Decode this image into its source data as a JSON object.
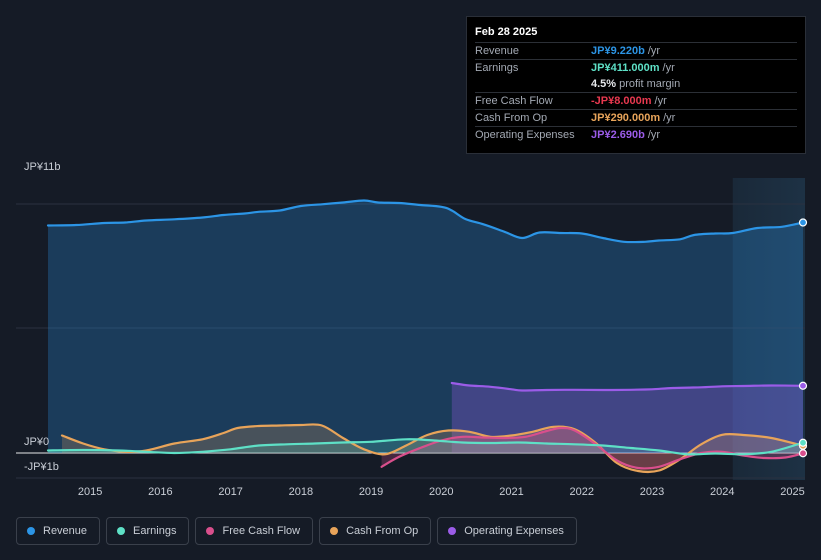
{
  "chart_data": {
    "type": "area",
    "y_axis_labels": {
      "top": "JP¥11b",
      "zero": "JP¥0",
      "bottom": "-JP¥1b"
    },
    "ylim": [
      -1,
      11
    ],
    "xlim": [
      2014.4,
      2025.15
    ],
    "x_ticks": [
      {
        "value": 2015,
        "label": "2015"
      },
      {
        "value": 2016,
        "label": "2016"
      },
      {
        "value": 2017,
        "label": "2017"
      },
      {
        "value": 2018,
        "label": "2018"
      },
      {
        "value": 2019,
        "label": "2019"
      },
      {
        "value": 2020,
        "label": "2020"
      },
      {
        "value": 2021,
        "label": "2021"
      },
      {
        "value": 2022,
        "label": "2022"
      },
      {
        "value": 2023,
        "label": "2023"
      },
      {
        "value": 2024,
        "label": "2024"
      },
      {
        "value": 2025,
        "label": "2025"
      }
    ],
    "highlight_from": 2024.15,
    "series": [
      {
        "name": "Revenue",
        "color": "#2c95e6",
        "fill": true,
        "x": [
          2014.4,
          2014.8,
          2015.2,
          2015.5,
          2015.8,
          2016.2,
          2016.6,
          2016.9,
          2017.2,
          2017.4,
          2017.7,
          2018.0,
          2018.3,
          2018.6,
          2018.9,
          2019.1,
          2019.4,
          2019.7,
          2020.0,
          2020.15,
          2020.35,
          2020.6,
          2020.9,
          2021.15,
          2021.4,
          2021.7,
          2022.0,
          2022.3,
          2022.6,
          2022.9,
          2023.1,
          2023.4,
          2023.6,
          2023.9,
          2024.15,
          2024.5,
          2024.85,
          2025.15
        ],
        "values": [
          9.1,
          9.12,
          9.2,
          9.22,
          9.3,
          9.35,
          9.42,
          9.52,
          9.58,
          9.65,
          9.7,
          9.88,
          9.95,
          10.02,
          10.1,
          10.02,
          10.0,
          9.92,
          9.85,
          9.7,
          9.35,
          9.15,
          8.85,
          8.6,
          8.82,
          8.8,
          8.78,
          8.6,
          8.45,
          8.45,
          8.5,
          8.55,
          8.72,
          8.78,
          8.8,
          9.0,
          9.05,
          9.22
        ]
      },
      {
        "name": "Operating Expenses",
        "color": "#9b5ce8",
        "fill": true,
        "x": [
          2020.15,
          2020.4,
          2020.7,
          2021.0,
          2021.15,
          2021.5,
          2021.9,
          2022.3,
          2022.7,
          2023.0,
          2023.3,
          2023.7,
          2024.0,
          2024.3,
          2024.7,
          2025.15
        ],
        "values": [
          2.8,
          2.7,
          2.65,
          2.55,
          2.5,
          2.52,
          2.53,
          2.52,
          2.53,
          2.55,
          2.6,
          2.63,
          2.67,
          2.68,
          2.7,
          2.69
        ]
      },
      {
        "name": "Cash From Op",
        "color": "#e8a45a",
        "fill": true,
        "x": [
          2014.6,
          2014.9,
          2015.2,
          2015.5,
          2015.8,
          2016.2,
          2016.6,
          2016.9,
          2017.1,
          2017.4,
          2017.7,
          2018.0,
          2018.3,
          2018.6,
          2018.9,
          2019.2,
          2019.5,
          2019.8,
          2020.1,
          2020.4,
          2020.7,
          2021.0,
          2021.3,
          2021.6,
          2021.9,
          2022.2,
          2022.5,
          2022.8,
          2023.1,
          2023.4,
          2023.7,
          2024.0,
          2024.3,
          2024.7,
          2025.15
        ],
        "values": [
          0.7,
          0.38,
          0.15,
          0.05,
          0.1,
          0.38,
          0.55,
          0.8,
          1.0,
          1.08,
          1.1,
          1.12,
          1.1,
          0.6,
          0.15,
          -0.05,
          0.3,
          0.72,
          0.9,
          0.85,
          0.65,
          0.7,
          0.85,
          1.05,
          0.95,
          0.4,
          -0.4,
          -0.72,
          -0.7,
          -0.25,
          0.35,
          0.73,
          0.72,
          0.6,
          0.29
        ]
      },
      {
        "name": "Free Cash Flow",
        "color": "#d94f8c",
        "fill": true,
        "x": [
          2019.15,
          2019.4,
          2019.7,
          2020.0,
          2020.3,
          2020.6,
          2020.9,
          2021.2,
          2021.5,
          2021.7,
          2021.9,
          2022.2,
          2022.5,
          2022.8,
          2023.1,
          2023.4,
          2023.7,
          2024.0,
          2024.3,
          2024.6,
          2024.9,
          2025.15
        ],
        "values": [
          -0.55,
          -0.15,
          0.2,
          0.5,
          0.65,
          0.62,
          0.6,
          0.65,
          0.88,
          1.0,
          0.9,
          0.35,
          -0.3,
          -0.6,
          -0.55,
          -0.25,
          0.0,
          0.05,
          -0.1,
          -0.2,
          -0.18,
          -0.01
        ]
      },
      {
        "name": "Earnings",
        "color": "#5ee0c6",
        "fill": true,
        "x": [
          2014.4,
          2014.9,
          2015.4,
          2015.8,
          2016.2,
          2016.6,
          2017.0,
          2017.4,
          2017.8,
          2018.2,
          2018.6,
          2019.0,
          2019.5,
          2019.9,
          2020.3,
          2020.7,
          2021.1,
          2021.5,
          2021.9,
          2022.3,
          2022.7,
          2023.1,
          2023.5,
          2023.9,
          2024.3,
          2024.7,
          2025.15
        ],
        "values": [
          0.1,
          0.12,
          0.1,
          0.05,
          0.0,
          0.05,
          0.15,
          0.3,
          0.35,
          0.38,
          0.42,
          0.45,
          0.55,
          0.5,
          0.42,
          0.4,
          0.42,
          0.38,
          0.35,
          0.3,
          0.2,
          0.1,
          -0.05,
          -0.02,
          -0.05,
          0.05,
          0.411
        ]
      }
    ]
  },
  "tooltip": {
    "date": "Feb 28 2025",
    "rows": [
      {
        "label": "Revenue",
        "value": "JP¥9.220b",
        "unit": "/yr",
        "color": "#2c95e6"
      },
      {
        "label": "Earnings",
        "value": "JP¥411.000m",
        "unit": "/yr",
        "color": "#5ee0c6"
      },
      {
        "label": "",
        "value": "4.5%",
        "unit": "profit margin",
        "color": "#e6e8eb"
      },
      {
        "label": "Free Cash Flow",
        "value": "-JP¥8.000m",
        "unit": "/yr",
        "color": "#e8384f"
      },
      {
        "label": "Cash From Op",
        "value": "JP¥290.000m",
        "unit": "/yr",
        "color": "#e8a45a"
      },
      {
        "label": "Operating Expenses",
        "value": "JP¥2.690b",
        "unit": "/yr",
        "color": "#9b5ce8"
      }
    ]
  },
  "legend": [
    {
      "label": "Revenue",
      "color": "#2c95e6"
    },
    {
      "label": "Earnings",
      "color": "#5ee0c6"
    },
    {
      "label": "Free Cash Flow",
      "color": "#d94f8c"
    },
    {
      "label": "Cash From Op",
      "color": "#e8a45a"
    },
    {
      "label": "Operating Expenses",
      "color": "#9b5ce8"
    }
  ]
}
